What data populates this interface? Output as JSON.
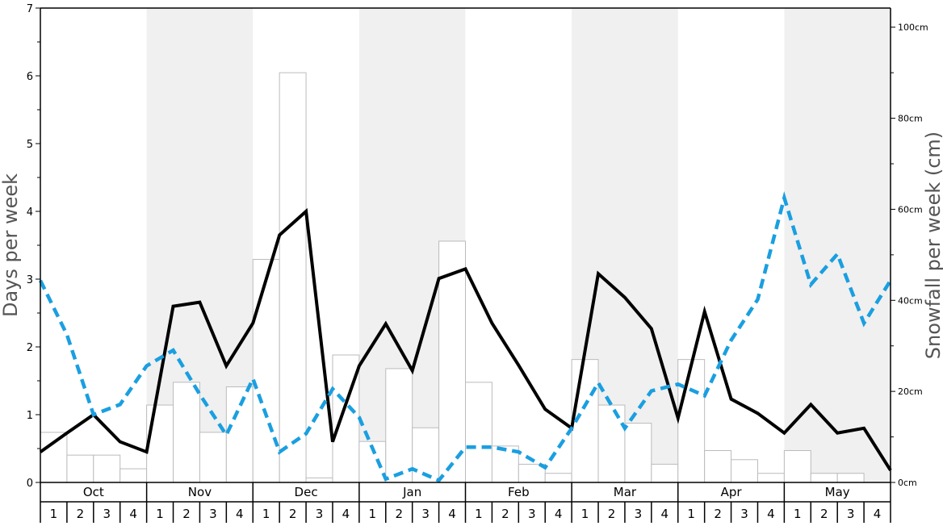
{
  "chart_data": {
    "type": "bar+line",
    "left_axis": {
      "label": "Days per week",
      "range": [
        0,
        7
      ],
      "ticks": [
        0,
        1,
        2,
        3,
        4,
        5,
        6,
        7
      ]
    },
    "right_axis": {
      "label": "Snowfall per week (cm)",
      "range": [
        0,
        104.2
      ],
      "ticks": [
        "0cm",
        "20cm",
        "40cm",
        "60cm",
        "80cm",
        "100cm"
      ],
      "tick_values": [
        0,
        20,
        40,
        60,
        80,
        100
      ]
    },
    "months": [
      "Oct",
      "Nov",
      "Dec",
      "Jan",
      "Feb",
      "Mar",
      "Apr",
      "May"
    ],
    "week_labels": [
      "1",
      "2",
      "3",
      "4"
    ],
    "shaded_months": [
      "Nov",
      "Jan",
      "Mar",
      "May"
    ],
    "grid": false,
    "legend": "none",
    "colors": {
      "bar_fill": "#ffffff",
      "bar_stroke": "#bbbbbb",
      "solid_line": "#000000",
      "dashed_line": "#1a9fe0",
      "shade": "#f0f0f0",
      "axis": "#000000",
      "axis_label": "#555555"
    },
    "series": [
      {
        "type": "bar",
        "axis": "right",
        "values": [
          11,
          6,
          6,
          3,
          17,
          22,
          11,
          21,
          49,
          90,
          1,
          28,
          9,
          25,
          12,
          53,
          22,
          8,
          4,
          2,
          27,
          17,
          13,
          4,
          27,
          7,
          5,
          2,
          7,
          2,
          2,
          0
        ]
      },
      {
        "type": "line",
        "style": "solid",
        "axis": "left",
        "values": [
          0.45,
          0.73,
          1.0,
          0.6,
          0.45,
          2.6,
          2.66,
          1.72,
          2.35,
          3.65,
          4.0,
          0.6,
          1.72,
          2.34,
          1.65,
          3.01,
          3.15,
          2.35,
          1.73,
          1.08,
          0.8,
          3.08,
          2.73,
          2.27,
          0.95,
          2.52,
          1.23,
          1.02,
          0.73,
          1.15,
          0.73,
          0.8,
          0.18
        ]
      },
      {
        "type": "line",
        "style": "dashed",
        "axis": "left",
        "values": [
          2.98,
          2.18,
          1.0,
          1.15,
          1.72,
          1.95,
          1.3,
          0.7,
          1.53,
          0.45,
          0.72,
          1.38,
          0.96,
          0.05,
          0.2,
          0.03,
          0.52,
          0.52,
          0.45,
          0.22,
          0.8,
          1.47,
          0.8,
          1.35,
          1.45,
          1.28,
          2.1,
          2.7,
          4.2,
          2.92,
          3.37,
          2.35,
          2.98
        ]
      }
    ]
  }
}
